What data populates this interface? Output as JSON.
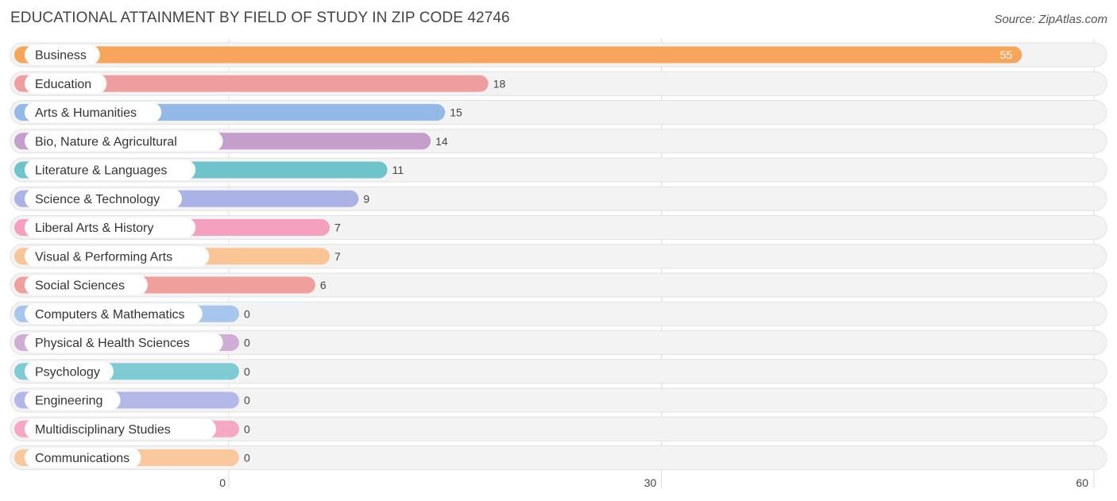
{
  "title": "EDUCATIONAL ATTAINMENT BY FIELD OF STUDY IN ZIP CODE 42746",
  "source": "Source: ZipAtlas.com",
  "chart_data": {
    "type": "bar",
    "orientation": "horizontal",
    "title": "EDUCATIONAL ATTAINMENT BY FIELD OF STUDY IN ZIP CODE 42746",
    "categories": [
      "Business",
      "Education",
      "Arts & Humanities",
      "Bio, Nature & Agricultural",
      "Literature & Languages",
      "Science & Technology",
      "Liberal Arts & History",
      "Visual & Performing Arts",
      "Social Sciences",
      "Computers & Mathematics",
      "Physical & Health Sciences",
      "Psychology",
      "Engineering",
      "Multidisciplinary Studies",
      "Communications"
    ],
    "values": [
      55,
      18,
      15,
      14,
      11,
      9,
      7,
      7,
      6,
      0,
      0,
      0,
      0,
      0,
      0
    ],
    "colors": [
      "#f6a55b",
      "#ee9e9e",
      "#94b9e6",
      "#c49fcb",
      "#6fc3cb",
      "#aab2e6",
      "#f5a0bf",
      "#f9c596",
      "#ef9f9c",
      "#a6c6ec",
      "#cfaed6",
      "#7ecbd3",
      "#b3b8e8",
      "#f5a8c4",
      "#f9c89d"
    ],
    "xlim": [
      0,
      60
    ],
    "xticks": [
      "0",
      "30",
      "60"
    ],
    "grid": true
  }
}
